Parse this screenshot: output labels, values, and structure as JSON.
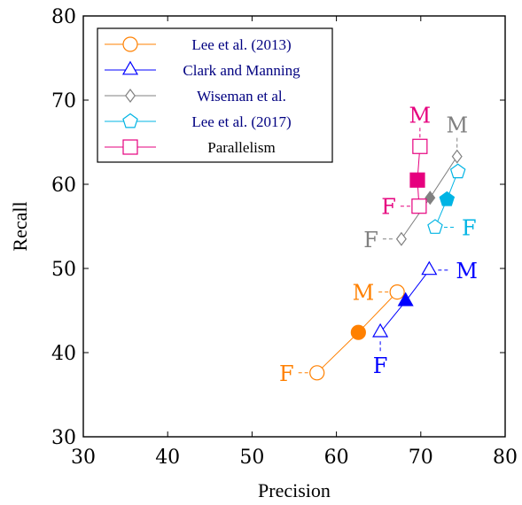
{
  "chart_data": {
    "type": "line",
    "xlabel": "Precision",
    "ylabel": "Recall",
    "xlim": [
      30,
      80
    ],
    "ylim": [
      30,
      80
    ],
    "xticks": [
      30,
      40,
      50,
      60,
      70,
      80
    ],
    "yticks": [
      30,
      40,
      50,
      60,
      70,
      80
    ],
    "grid": false,
    "legend_position": "top-left",
    "series": [
      {
        "name": "Lee et al. (2013)",
        "color": "#ff8000",
        "marker": "circle",
        "points": {
          "F": [
            57.7,
            37.6
          ],
          "overall": [
            62.6,
            42.4
          ],
          "M": [
            67.2,
            47.2
          ]
        },
        "annotations": [
          {
            "text": "F",
            "anchor": "F",
            "side": "left"
          },
          {
            "text": "M",
            "anchor": "M",
            "side": "left"
          }
        ]
      },
      {
        "name": "Clark and Manning",
        "color": "#0000ff",
        "marker": "triangle",
        "points": {
          "F": [
            65.2,
            42.4
          ],
          "overall": [
            68.2,
            46.1
          ],
          "M": [
            71.0,
            49.8
          ]
        },
        "annotations": [
          {
            "text": "F",
            "anchor": "F",
            "side": "below"
          },
          {
            "text": "M",
            "anchor": "M",
            "side": "right"
          }
        ]
      },
      {
        "name": "Wiseman et al.",
        "color": "#808080",
        "marker": "diamond",
        "points": {
          "F": [
            67.7,
            53.5
          ],
          "overall": [
            71.1,
            58.4
          ],
          "M": [
            74.3,
            63.3
          ]
        },
        "annotations": [
          {
            "text": "F",
            "anchor": "F",
            "side": "left"
          },
          {
            "text": "M",
            "anchor": "M",
            "side": "above"
          }
        ]
      },
      {
        "name": "Lee et al. (2017)",
        "color": "#00b4e4",
        "marker": "pentagon",
        "points": {
          "F": [
            71.7,
            54.9
          ],
          "overall": [
            73.1,
            58.2
          ],
          "M": [
            74.4,
            61.5
          ]
        },
        "annotations": [
          {
            "text": "F",
            "anchor": "F",
            "side": "right"
          }
        ]
      },
      {
        "name": "Parallelism",
        "color": "#e6007e",
        "marker": "square",
        "points": {
          "F": [
            69.8,
            57.4
          ],
          "overall": [
            69.6,
            60.5
          ],
          "M": [
            69.9,
            64.5
          ]
        },
        "annotations": [
          {
            "text": "F",
            "anchor": "F",
            "side": "left"
          },
          {
            "text": "M",
            "anchor": "M",
            "side": "above"
          }
        ]
      }
    ]
  }
}
